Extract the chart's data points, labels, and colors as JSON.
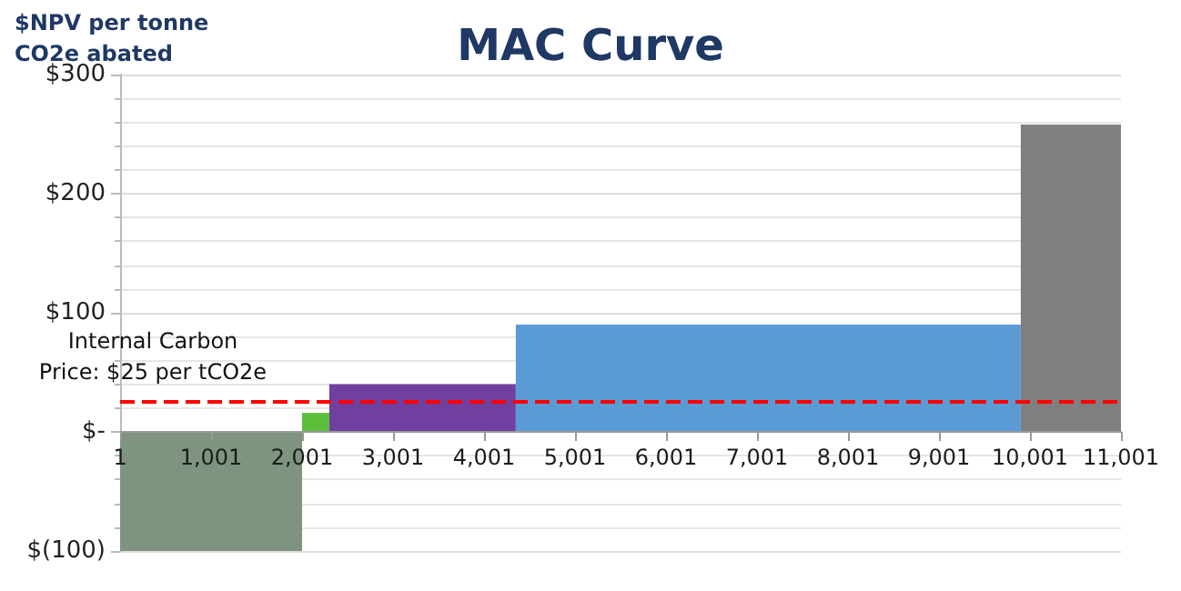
{
  "chart_data": {
    "type": "area",
    "title": "MAC Curve",
    "ylabel": "$NPV per tonne\nCO2e abated",
    "series": [
      {
        "color": "#7e9480",
        "x": [
          1,
          2001
        ],
        "values": [
          -100,
          -100
        ]
      },
      {
        "color": "#5cbf3c",
        "x": [
          2001,
          2300
        ],
        "values": [
          16,
          16
        ]
      },
      {
        "color": "#7040a0",
        "x": [
          2300,
          4350
        ],
        "values": [
          40,
          40
        ]
      },
      {
        "color": "#5b9bd5",
        "x": [
          4350,
          9900
        ],
        "values": [
          90,
          90
        ]
      },
      {
        "color": "#7f7f7f",
        "x": [
          9900,
          11001
        ],
        "values": [
          258,
          258
        ]
      }
    ],
    "xlim": [
      1,
      11001
    ],
    "xticks": [
      1,
      {
        "value": 1001,
        "label": "1,001"
      },
      {
        "value": 2001,
        "label": "2,001"
      },
      {
        "value": 3001,
        "label": "3,001"
      },
      {
        "value": 4001,
        "label": "4,001"
      },
      {
        "value": 5001,
        "label": "5,001"
      },
      {
        "value": 6001,
        "label": "6,001"
      },
      {
        "value": 7001,
        "label": "7,001"
      },
      {
        "value": 8001,
        "label": "8,001"
      },
      {
        "value": 9001,
        "label": "9,001"
      },
      {
        "value": 10001,
        "label": "10,001"
      },
      {
        "value": 11001,
        "label": "11,001"
      }
    ],
    "ylim": [
      -100,
      300
    ],
    "yticks": [
      {
        "value": -100,
        "label": "$(100)"
      },
      {
        "value": 0,
        "label": "$-"
      },
      {
        "value": 100,
        "label": "$100"
      },
      {
        "value": 200,
        "label": "$200"
      },
      {
        "value": 300,
        "label": "$300"
      }
    ],
    "ref_lines": [
      {
        "axis": "y",
        "value": 25,
        "label": "Internal Carbon\nPrice: $25 per tCO2e",
        "color": "#ff0000",
        "line_style": "dashed"
      }
    ],
    "grid": "y"
  }
}
